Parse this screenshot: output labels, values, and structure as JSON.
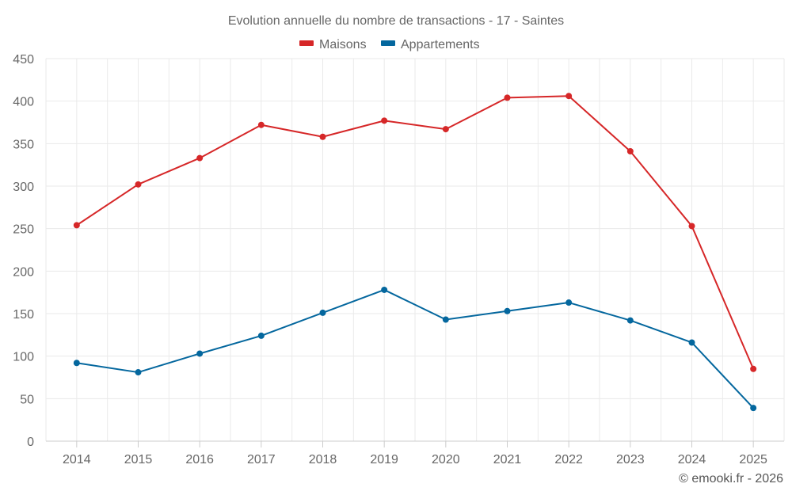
{
  "chart_data": {
    "type": "line",
    "title": "Evolution annuelle du nombre de transactions - 17 - Saintes",
    "xlabel": "",
    "ylabel": "",
    "categories": [
      "2014",
      "2015",
      "2016",
      "2017",
      "2018",
      "2019",
      "2020",
      "2021",
      "2022",
      "2023",
      "2024",
      "2025"
    ],
    "ylim": [
      0,
      450
    ],
    "yticks": [
      0,
      50,
      100,
      150,
      200,
      250,
      300,
      350,
      400,
      450
    ],
    "grid": true,
    "legend_position": "top-center",
    "series": [
      {
        "name": "Maisons",
        "color": "#d62728",
        "values": [
          254,
          302,
          333,
          372,
          358,
          377,
          367,
          404,
          406,
          341,
          253,
          85
        ]
      },
      {
        "name": "Appartements",
        "color": "#04679e",
        "values": [
          92,
          81,
          103,
          124,
          151,
          178,
          143,
          153,
          163,
          142,
          116,
          39
        ]
      }
    ],
    "credit": "© emooki.fr - 2026"
  }
}
